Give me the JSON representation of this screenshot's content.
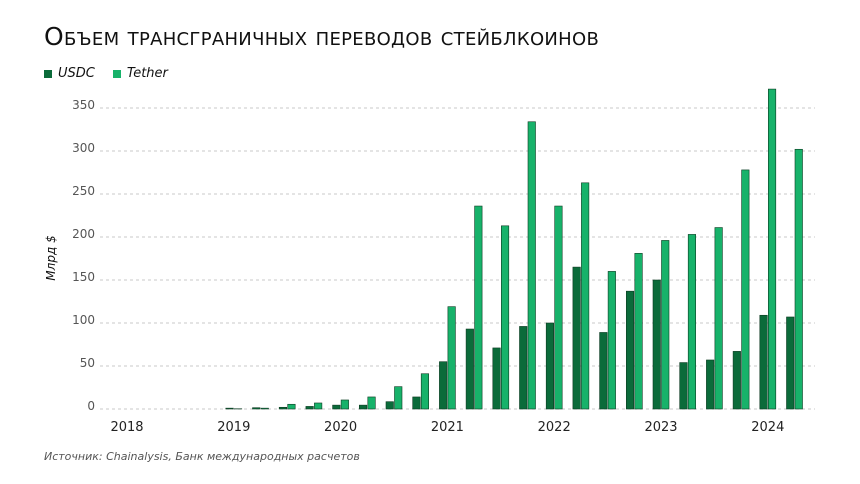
{
  "chart_data": {
    "type": "bar",
    "title": "Объем трансграничных переводов стейблкоинов",
    "ylabel": "Млрд $",
    "xlabel": "",
    "ylim": [
      0,
      360
    ],
    "yticks": [
      0,
      50,
      100,
      150,
      200,
      250,
      300,
      350
    ],
    "grid": true,
    "legend_position": "top-left",
    "x_tick_labels": [
      "2018",
      "2019",
      "2020",
      "2021",
      "2022",
      "2023",
      "2024"
    ],
    "categories": [
      "2018Q1",
      "2018Q2",
      "2018Q3",
      "2018Q4",
      "2019Q1",
      "2019Q2",
      "2019Q3",
      "2019Q4",
      "2020Q1",
      "2020Q2",
      "2020Q3",
      "2020Q4",
      "2021Q1",
      "2021Q2",
      "2021Q3",
      "2021Q4",
      "2022Q1",
      "2022Q2",
      "2022Q3",
      "2022Q4",
      "2023Q1",
      "2023Q2",
      "2023Q3",
      "2023Q4",
      "2024Q1",
      "2024Q2"
    ],
    "series": [
      {
        "name": "USDC",
        "color": "#0b6b3a",
        "values": [
          0,
          0,
          0,
          0,
          1,
          1.5,
          2,
          3,
          4.5,
          4.5,
          8.5,
          14,
          55,
          93,
          71,
          96,
          100,
          165,
          89,
          137,
          150,
          54,
          57,
          67,
          109,
          107
        ]
      },
      {
        "name": "Tether",
        "color": "#17b26a",
        "values": [
          0,
          0,
          0,
          0,
          0.3,
          1,
          5.5,
          7,
          10.5,
          14,
          26,
          41,
          119,
          236,
          213,
          334,
          236,
          263,
          160,
          181,
          196,
          203,
          211,
          278,
          372,
          302
        ]
      }
    ]
  },
  "source": "Источник: Chainalysis, Банк международных расчетов"
}
